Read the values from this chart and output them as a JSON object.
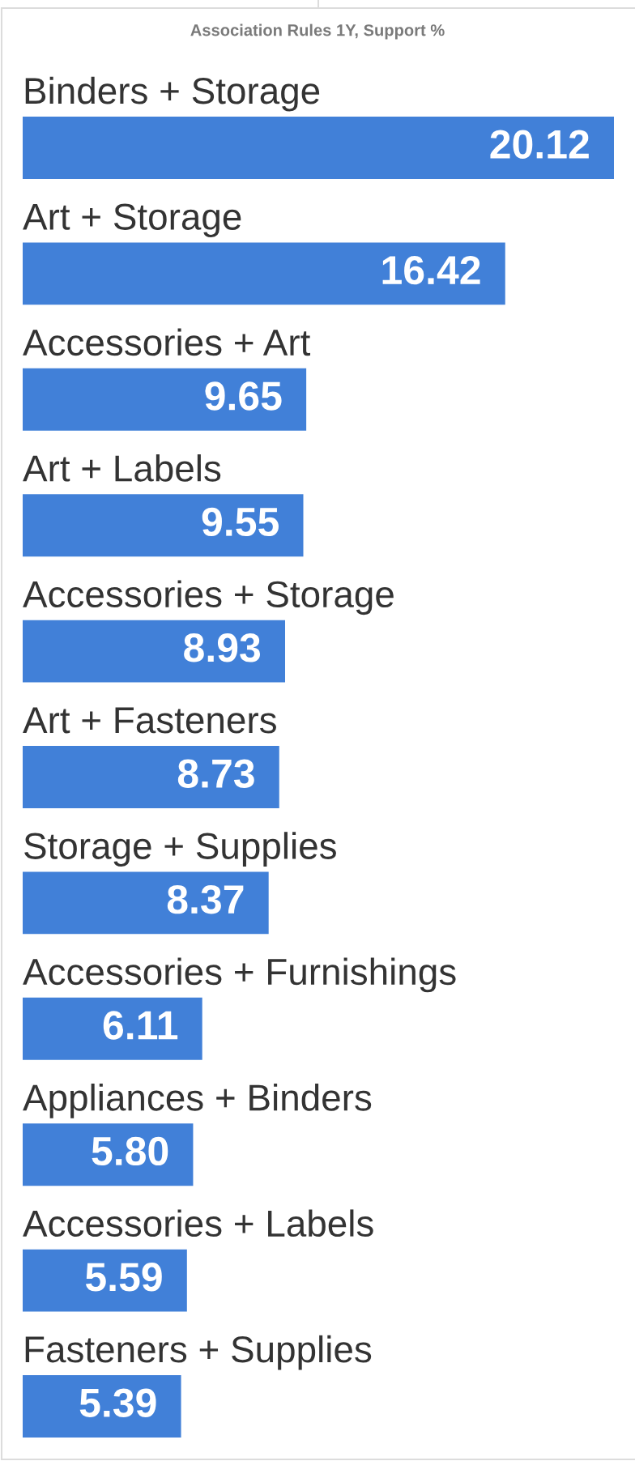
{
  "chart_data": {
    "type": "bar",
    "orientation": "horizontal",
    "title": "Association Rules 1Y, Support %",
    "categories": [
      "Binders + Storage",
      "Art + Storage",
      "Accessories + Art",
      "Art + Labels",
      "Accessories + Storage",
      "Art + Fasteners",
      "Storage + Supplies",
      "Accessories + Furnishings",
      "Appliances + Binders",
      "Accessories + Labels",
      "Fasteners + Supplies"
    ],
    "values": [
      20.12,
      16.42,
      9.65,
      9.55,
      8.93,
      8.73,
      8.37,
      6.11,
      5.8,
      5.59,
      5.39
    ],
    "value_labels": [
      "20.12",
      "16.42",
      "9.65",
      "9.55",
      "8.93",
      "8.73",
      "8.37",
      "6.11",
      "5.80",
      "5.59",
      "5.39"
    ],
    "color": "#4180d8",
    "tick_labels": "y"
  }
}
